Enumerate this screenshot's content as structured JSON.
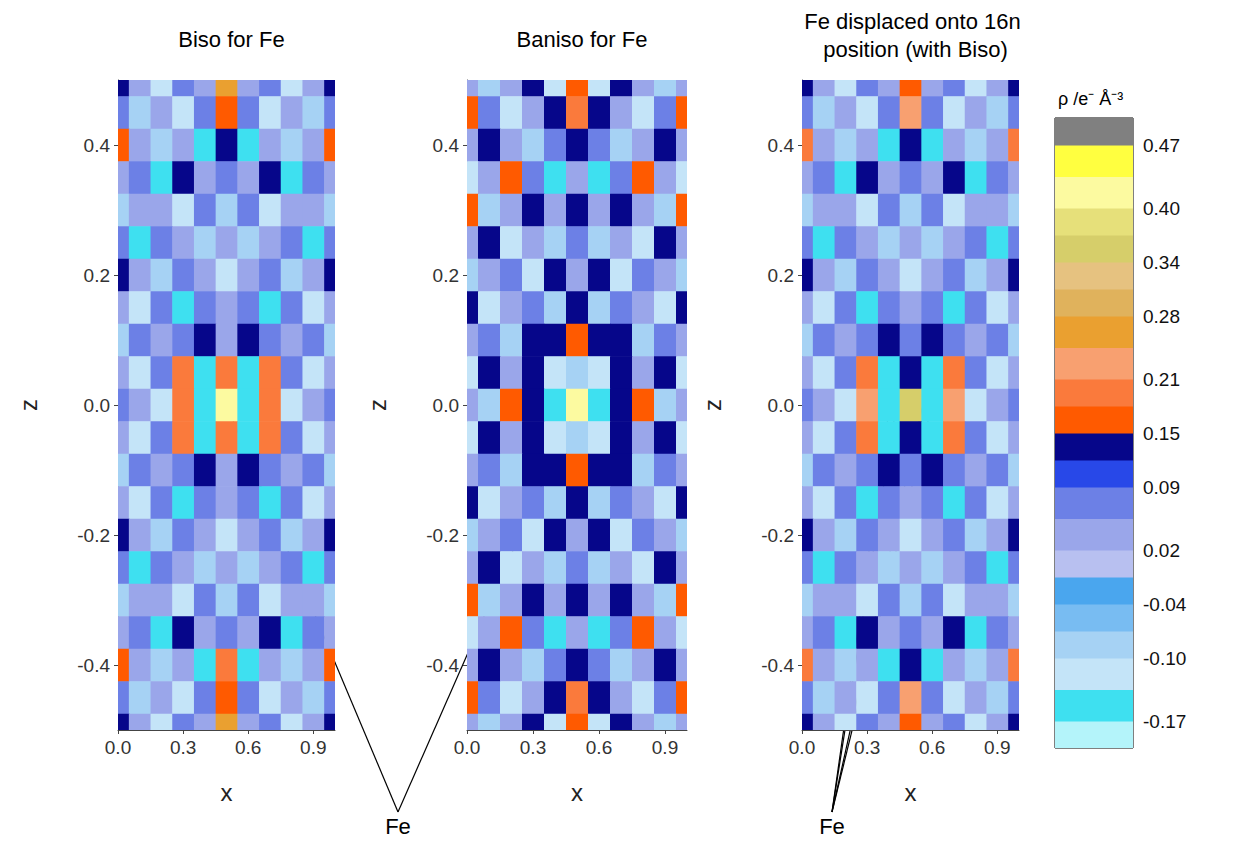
{
  "chart_data": [
    {
      "type": "heatmap",
      "title": "Biso for Fe",
      "x_label": "x",
      "y_label": "z",
      "xlim": [
        0,
        1
      ],
      "ylim": [
        -0.5,
        0.5
      ],
      "xticks": [
        {
          "value": 0,
          "label": "0.0"
        },
        0.3,
        0.6,
        0.9
      ],
      "yticks": [
        -0.4,
        -0.2,
        {
          "value": 0,
          "label": "0.0"
        },
        0.2,
        0.4
      ],
      "x": [
        0,
        0.1,
        0.2,
        0.3,
        0.4,
        0.5,
        0.6,
        0.7,
        0.8,
        0.9,
        1
      ],
      "z": [
        0.5,
        0.45,
        0.4,
        0.35,
        0.3,
        0.25,
        0.2,
        0.15,
        0.1,
        0.05,
        0,
        -0.05,
        -0.1,
        -0.15,
        -0.2,
        -0.25,
        -0.3,
        -0.35,
        -0.4,
        -0.45,
        -0.5
      ],
      "density": [
        [
          0.13,
          0.04,
          -0.12,
          0.06,
          0.02,
          0.25,
          0.02,
          0.06,
          -0.12,
          0.04,
          0.13
        ],
        [
          0.06,
          -0.08,
          0.05,
          -0.12,
          0.07,
          0.17,
          0.07,
          -0.12,
          0.05,
          -0.08,
          0.06
        ],
        [
          0.17,
          0.04,
          -0.1,
          0.05,
          -0.14,
          0.13,
          -0.14,
          0.05,
          -0.1,
          0.04,
          0.17
        ],
        [
          0.04,
          0.07,
          -0.15,
          0.13,
          0.03,
          0.06,
          0.03,
          0.13,
          -0.15,
          0.07,
          0.04
        ],
        [
          -0.1,
          0.05,
          0.03,
          -0.12,
          0.07,
          -0.1,
          0.07,
          -0.12,
          0.03,
          0.05,
          -0.1
        ],
        [
          0.07,
          -0.14,
          0.06,
          0.04,
          -0.08,
          0.05,
          -0.08,
          0.04,
          0.06,
          -0.14,
          0.07
        ],
        [
          0.13,
          0.04,
          -0.1,
          0.07,
          0.04,
          -0.13,
          0.04,
          0.07,
          -0.1,
          0.04,
          0.13
        ],
        [
          0.03,
          -0.12,
          0.06,
          -0.15,
          0.07,
          0.05,
          0.07,
          -0.15,
          0.06,
          -0.12,
          0.03
        ],
        [
          -0.1,
          0.06,
          0.04,
          0.07,
          0.13,
          0.03,
          0.13,
          0.07,
          0.04,
          0.06,
          -0.1
        ],
        [
          0.05,
          -0.13,
          0.06,
          0.19,
          -0.15,
          0.19,
          -0.15,
          0.19,
          0.06,
          -0.13,
          0.05
        ],
        [
          0.07,
          0.04,
          -0.12,
          0.19,
          -0.16,
          0.42,
          -0.16,
          0.19,
          -0.12,
          0.04,
          0.07
        ],
        [
          0.05,
          -0.13,
          0.06,
          0.19,
          -0.15,
          0.19,
          -0.15,
          0.19,
          0.06,
          -0.13,
          0.05
        ],
        [
          -0.1,
          0.06,
          0.04,
          0.07,
          0.13,
          0.03,
          0.13,
          0.07,
          0.04,
          0.06,
          -0.1
        ],
        [
          0.03,
          -0.12,
          0.06,
          -0.15,
          0.07,
          0.05,
          0.07,
          -0.15,
          0.06,
          -0.12,
          0.03
        ],
        [
          0.13,
          0.04,
          -0.1,
          0.07,
          0.04,
          -0.13,
          0.04,
          0.07,
          -0.1,
          0.04,
          0.13
        ],
        [
          0.07,
          -0.14,
          0.06,
          0.04,
          -0.08,
          0.05,
          -0.08,
          0.04,
          0.06,
          -0.14,
          0.07
        ],
        [
          -0.1,
          0.05,
          0.03,
          -0.12,
          0.07,
          -0.1,
          0.07,
          -0.12,
          0.03,
          0.05,
          -0.1
        ],
        [
          0.04,
          0.07,
          -0.15,
          0.13,
          0.03,
          0.06,
          0.03,
          0.13,
          -0.15,
          0.07,
          0.04
        ],
        [
          0.17,
          0.04,
          -0.1,
          0.05,
          -0.14,
          0.2,
          -0.14,
          0.05,
          -0.1,
          0.04,
          0.17
        ],
        [
          0.06,
          -0.08,
          0.05,
          -0.12,
          0.07,
          0.17,
          0.07,
          -0.12,
          0.05,
          -0.08,
          0.06
        ],
        [
          0.13,
          0.04,
          -0.12,
          0.06,
          0.02,
          0.25,
          0.02,
          0.06,
          -0.12,
          0.04,
          0.13
        ]
      ]
    },
    {
      "type": "heatmap",
      "title": "Baniso for Fe",
      "x_label": "x",
      "y_label": "z",
      "xlim": [
        0,
        1
      ],
      "ylim": [
        -0.5,
        0.5
      ],
      "xticks": [
        {
          "value": 0,
          "label": "0.0"
        },
        0.3,
        0.6,
        0.9
      ],
      "yticks": [
        -0.4,
        -0.2,
        {
          "value": 0,
          "label": "0.0"
        },
        0.2,
        0.4
      ],
      "x": [
        0,
        0.1,
        0.2,
        0.3,
        0.4,
        0.5,
        0.6,
        0.7,
        0.8,
        0.9,
        1
      ],
      "z": [
        0.5,
        0.45,
        0.4,
        0.35,
        0.3,
        0.25,
        0.2,
        0.15,
        0.1,
        0.05,
        0,
        -0.05,
        -0.1,
        -0.15,
        -0.2,
        -0.25,
        -0.3,
        -0.35,
        -0.4,
        -0.45,
        -0.5
      ],
      "density": [
        [
          0.05,
          -0.1,
          0.04,
          0.13,
          -0.12,
          0.17,
          -0.12,
          0.13,
          0.04,
          -0.1,
          0.05
        ],
        [
          0.17,
          0.06,
          -0.13,
          0.05,
          0.13,
          0.2,
          0.13,
          0.05,
          -0.13,
          0.06,
          0.17
        ],
        [
          0.04,
          0.13,
          0.05,
          -0.1,
          0.06,
          0.13,
          0.06,
          -0.1,
          0.05,
          0.13,
          0.04
        ],
        [
          -0.12,
          0.04,
          0.17,
          0.06,
          -0.14,
          0.05,
          -0.14,
          0.06,
          0.17,
          0.04,
          -0.12
        ],
        [
          0.16,
          -0.1,
          0.05,
          0.13,
          0.04,
          0.13,
          0.04,
          0.13,
          0.05,
          -0.1,
          0.16
        ],
        [
          0.05,
          0.13,
          -0.12,
          0.04,
          -0.1,
          0.06,
          -0.1,
          0.04,
          -0.12,
          0.13,
          0.05
        ],
        [
          -0.1,
          0.05,
          0.06,
          -0.12,
          0.13,
          0.04,
          0.13,
          -0.12,
          0.06,
          0.05,
          -0.1
        ],
        [
          0.13,
          -0.13,
          0.04,
          0.07,
          -0.1,
          0.13,
          -0.1,
          0.07,
          0.04,
          -0.13,
          0.13
        ],
        [
          0.04,
          0.06,
          -0.1,
          0.13,
          0.13,
          0.17,
          0.13,
          0.13,
          -0.1,
          0.06,
          0.04
        ],
        [
          -0.12,
          0.13,
          0.05,
          0.13,
          -0.13,
          -0.1,
          -0.13,
          0.13,
          0.05,
          0.13,
          -0.12
        ],
        [
          0.05,
          -0.1,
          0.17,
          0.13,
          -0.15,
          0.43,
          -0.15,
          0.13,
          0.17,
          -0.1,
          0.05
        ],
        [
          -0.12,
          0.13,
          0.05,
          0.13,
          -0.13,
          -0.1,
          -0.13,
          0.13,
          0.05,
          0.13,
          -0.12
        ],
        [
          0.04,
          0.06,
          -0.1,
          0.13,
          0.13,
          0.17,
          0.13,
          0.13,
          -0.1,
          0.06,
          0.04
        ],
        [
          0.13,
          -0.13,
          0.04,
          0.07,
          -0.1,
          0.13,
          -0.1,
          0.07,
          0.04,
          -0.13,
          0.13
        ],
        [
          -0.1,
          0.05,
          0.06,
          -0.12,
          0.13,
          0.04,
          0.13,
          -0.12,
          0.06,
          0.05,
          -0.1
        ],
        [
          0.05,
          0.13,
          -0.12,
          0.04,
          -0.1,
          0.06,
          -0.1,
          0.04,
          -0.12,
          0.13,
          0.05
        ],
        [
          0.16,
          -0.1,
          0.05,
          0.13,
          0.04,
          0.13,
          0.04,
          0.13,
          0.05,
          -0.1,
          0.16
        ],
        [
          -0.12,
          0.04,
          0.17,
          0.06,
          -0.14,
          0.05,
          -0.14,
          0.06,
          0.17,
          0.04,
          -0.12
        ],
        [
          0.04,
          0.13,
          0.05,
          -0.1,
          0.06,
          0.13,
          0.06,
          -0.1,
          0.05,
          0.13,
          0.04
        ],
        [
          0.17,
          0.06,
          -0.13,
          0.05,
          0.13,
          0.2,
          0.13,
          0.05,
          -0.13,
          0.06,
          0.17
        ],
        [
          0.05,
          -0.1,
          0.04,
          0.13,
          -0.12,
          0.17,
          -0.12,
          0.13,
          0.04,
          -0.1,
          0.05
        ]
      ]
    },
    {
      "type": "heatmap",
      "title": "Fe displaced onto 16n position (with Biso)",
      "x_label": "x",
      "y_label": "z",
      "xlim": [
        0,
        1
      ],
      "ylim": [
        -0.5,
        0.5
      ],
      "xticks": [
        {
          "value": 0,
          "label": "0.0"
        },
        0.3,
        0.6,
        0.9
      ],
      "yticks": [
        -0.4,
        -0.2,
        {
          "value": 0,
          "label": "0.0"
        },
        0.2,
        0.4
      ],
      "x": [
        0,
        0.1,
        0.2,
        0.3,
        0.4,
        0.5,
        0.6,
        0.7,
        0.8,
        0.9,
        1
      ],
      "z": [
        0.5,
        0.45,
        0.4,
        0.35,
        0.3,
        0.25,
        0.2,
        0.15,
        0.1,
        0.05,
        0,
        -0.05,
        -0.1,
        -0.15,
        -0.2,
        -0.25,
        -0.3,
        -0.35,
        -0.4,
        -0.45,
        -0.5
      ],
      "density": [
        [
          0.13,
          0.04,
          -0.12,
          0.06,
          0.02,
          0.17,
          0.02,
          0.06,
          -0.12,
          0.04,
          0.13
        ],
        [
          0.06,
          -0.08,
          0.05,
          -0.12,
          0.07,
          0.22,
          0.07,
          -0.12,
          0.05,
          -0.08,
          0.06
        ],
        [
          0.18,
          0.04,
          -0.1,
          0.05,
          -0.14,
          0.13,
          -0.14,
          0.05,
          -0.1,
          0.04,
          0.18
        ],
        [
          0.04,
          0.07,
          -0.15,
          0.13,
          0.03,
          0.06,
          0.03,
          0.13,
          -0.15,
          0.07,
          0.04
        ],
        [
          -0.1,
          0.05,
          0.03,
          -0.12,
          0.07,
          -0.1,
          0.07,
          -0.12,
          0.03,
          0.05,
          -0.1
        ],
        [
          0.07,
          -0.14,
          0.06,
          0.04,
          -0.08,
          0.05,
          -0.08,
          0.04,
          0.06,
          -0.14,
          0.07
        ],
        [
          0.13,
          0.04,
          -0.1,
          0.07,
          0.04,
          -0.13,
          0.04,
          0.07,
          -0.1,
          0.04,
          0.13
        ],
        [
          0.03,
          -0.12,
          0.06,
          -0.15,
          0.07,
          0.05,
          0.07,
          -0.15,
          0.06,
          -0.12,
          0.03
        ],
        [
          -0.1,
          0.06,
          0.04,
          0.07,
          0.13,
          0.06,
          0.13,
          0.07,
          0.04,
          0.06,
          -0.1
        ],
        [
          0.05,
          -0.13,
          0.06,
          0.2,
          -0.16,
          0.13,
          -0.16,
          0.2,
          0.06,
          -0.13,
          0.05
        ],
        [
          0.07,
          0.04,
          -0.12,
          0.22,
          -0.17,
          0.36,
          -0.17,
          0.22,
          -0.12,
          0.04,
          0.07
        ],
        [
          0.05,
          -0.13,
          0.06,
          0.2,
          -0.16,
          0.13,
          -0.16,
          0.2,
          0.06,
          -0.13,
          0.05
        ],
        [
          -0.1,
          0.06,
          0.04,
          0.07,
          0.13,
          0.06,
          0.13,
          0.07,
          0.04,
          0.06,
          -0.1
        ],
        [
          0.03,
          -0.12,
          0.06,
          -0.15,
          0.07,
          0.05,
          0.07,
          -0.15,
          0.06,
          -0.12,
          0.03
        ],
        [
          0.13,
          0.04,
          -0.1,
          0.07,
          0.04,
          -0.13,
          0.04,
          0.07,
          -0.1,
          0.04,
          0.13
        ],
        [
          0.07,
          -0.14,
          0.06,
          0.04,
          -0.08,
          0.05,
          -0.08,
          0.04,
          0.06,
          -0.14,
          0.07
        ],
        [
          -0.1,
          0.05,
          0.03,
          -0.12,
          0.07,
          -0.1,
          0.07,
          -0.12,
          0.03,
          0.05,
          -0.1
        ],
        [
          0.04,
          0.07,
          -0.15,
          0.13,
          0.03,
          0.06,
          0.03,
          0.13,
          -0.15,
          0.07,
          0.04
        ],
        [
          0.18,
          0.04,
          -0.1,
          0.05,
          -0.14,
          0.13,
          -0.14,
          0.05,
          -0.1,
          0.04,
          0.18
        ],
        [
          0.06,
          -0.08,
          0.05,
          -0.12,
          0.07,
          0.22,
          0.07,
          -0.12,
          0.05,
          -0.08,
          0.06
        ],
        [
          0.13,
          0.04,
          -0.12,
          0.06,
          0.02,
          0.17,
          0.02,
          0.06,
          -0.12,
          0.04,
          0.13
        ]
      ]
    }
  ],
  "colorbar": {
    "title": "ρ /e⁻ Å⁻³",
    "range": [
      -0.2,
      0.5
    ],
    "ticks": [
      0.47,
      {
        "value": 0.4,
        "label": "0.40"
      },
      0.34,
      0.28,
      0.21,
      0.15,
      0.09,
      0.02,
      -0.04,
      {
        "value": -0.1,
        "label": "-0.10"
      },
      -0.17
    ],
    "levels": [
      -0.2,
      -0.17,
      -0.135,
      -0.1,
      -0.07,
      -0.04,
      -0.01,
      0.02,
      0.055,
      0.09,
      0.12,
      0.15,
      0.18,
      0.21,
      0.245,
      0.28,
      0.31,
      0.34,
      0.37,
      0.4,
      0.435,
      0.47,
      0.5
    ],
    "colors": [
      "#b4f4fa",
      "#3ee0f0",
      "#c4e4f8",
      "#a6d2f4",
      "#78bcf2",
      "#4aa6ee",
      "#b8c0f0",
      "#9aa6ea",
      "#6c80e6",
      "#2848e8",
      "#06068a",
      "#ff5a00",
      "#fa7a3c",
      "#f8a070",
      "#eaa030",
      "#e0b25c",
      "#e6c280",
      "#d6ce6a",
      "#e6e07a",
      "#fcfaa0",
      "#ffff40",
      "#808080"
    ]
  },
  "annotations": [
    {
      "text": "Fe",
      "targets": [
        {
          "panel": 0,
          "x": 0.5,
          "z": 0
        },
        {
          "panel": 1,
          "x": 0.5,
          "z": 0
        }
      ]
    },
    {
      "text": "Fe",
      "targets": [
        {
          "panel": 2,
          "x": 0.43,
          "z": 0.06
        },
        {
          "panel": 2,
          "x": 0.6,
          "z": 0.065
        },
        {
          "panel": 2,
          "x": 0.44,
          "z": 0.01
        },
        {
          "panel": 2,
          "x": 0.61,
          "z": 0.015
        }
      ]
    }
  ]
}
